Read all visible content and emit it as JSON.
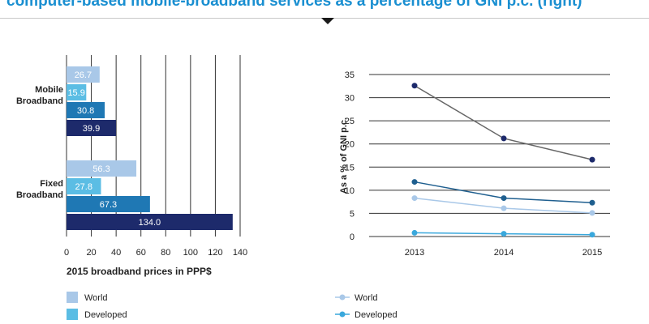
{
  "header": {
    "title": "computer-based mobile-broadband services as a percentage of GNI p.c. (right)"
  },
  "colors": {
    "world": "#a9c8e8",
    "developed": "#5bbde4",
    "developing": "#1f78b4",
    "ldc": "#1d2a6b",
    "grid": "#333333"
  },
  "chart_data": [
    {
      "type": "bar",
      "orientation": "horizontal",
      "categories": [
        "Mobile Broadband",
        "Fixed Broadband"
      ],
      "category_labels": [
        [
          "Mobile",
          "Broadband"
        ],
        [
          "Fixed",
          "Broadband"
        ]
      ],
      "series": [
        {
          "name": "World",
          "values": [
            26.7,
            56.3
          ],
          "labels": [
            "26.7",
            "56.3"
          ]
        },
        {
          "name": "Developed",
          "values": [
            15.9,
            27.8
          ],
          "labels": [
            "15.9",
            "27.8"
          ]
        },
        {
          "values": [
            30.8,
            67.3
          ],
          "labels": [
            "30.8",
            "67.3"
          ]
        },
        {
          "values": [
            39.9,
            134.0
          ],
          "labels": [
            "39.9",
            "134.0"
          ]
        }
      ],
      "xlabel": "2015 broadband prices in PPP$",
      "xlim": [
        0,
        140
      ],
      "xticks": [
        0,
        20,
        40,
        60,
        80,
        100,
        120,
        140
      ],
      "xtick_labels": [
        "0",
        "20",
        "40",
        "60",
        "80",
        "100",
        "120",
        "140"
      ],
      "grid": "vertical",
      "legend": [
        "World",
        "Developed"
      ]
    },
    {
      "type": "line",
      "x": [
        2013,
        2014,
        2015
      ],
      "xtick_labels": [
        "2013",
        "2014",
        "2015"
      ],
      "series": [
        {
          "values": [
            32.6,
            21.2,
            16.6
          ]
        },
        {
          "values": [
            11.8,
            8.3,
            7.3
          ]
        },
        {
          "name": "World",
          "values": [
            8.3,
            6.1,
            5.1
          ]
        },
        {
          "name": "Developed",
          "values": [
            0.8,
            0.6,
            0.4
          ]
        }
      ],
      "ylabel": "As a % of GNI p.c.",
      "ylim": [
        0,
        35
      ],
      "yticks": [
        0,
        5,
        10,
        15,
        20,
        25,
        30,
        35
      ],
      "ytick_labels": [
        "0",
        "5",
        "10",
        "15",
        "20",
        "25",
        "30",
        "35"
      ],
      "grid": "horizontal",
      "legend": [
        "World",
        "Developed"
      ]
    }
  ]
}
